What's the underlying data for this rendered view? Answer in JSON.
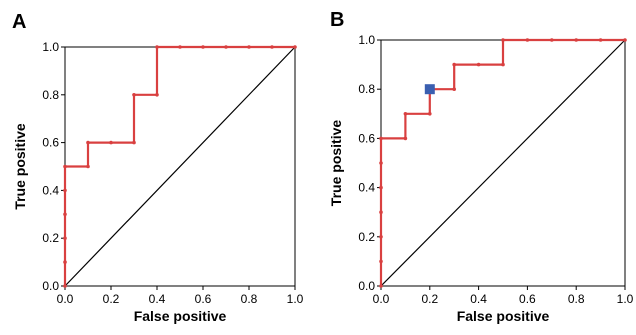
{
  "chart_data": [
    {
      "type": "line",
      "panel_label": "A",
      "xlabel": "False positive",
      "ylabel": "True positive",
      "xlim": [
        0,
        1
      ],
      "ylim": [
        0,
        1
      ],
      "x_ticks": [
        "0.0",
        "0.2",
        "0.4",
        "0.6",
        "0.8",
        "1.0"
      ],
      "y_ticks": [
        "0.0",
        "0.2",
        "0.4",
        "0.6",
        "0.8",
        "1.0"
      ],
      "grid": false,
      "series": [
        {
          "color": "#d94040",
          "x": [
            0,
            0,
            0,
            0,
            0,
            0,
            0.1,
            0.1,
            0.2,
            0.3,
            0.3,
            0.4,
            0.4,
            0.5,
            0.6,
            0.7,
            0.8,
            0.9,
            1.0
          ],
          "y": [
            0,
            0.1,
            0.2,
            0.3,
            0.4,
            0.5,
            0.5,
            0.6,
            0.6,
            0.6,
            0.8,
            0.8,
            1.0,
            1.0,
            1.0,
            1.0,
            1.0,
            1.0,
            1.0
          ]
        }
      ],
      "reference_line": {
        "x": [
          0,
          1
        ],
        "y": [
          0,
          1
        ],
        "color": "#000000"
      }
    },
    {
      "type": "line",
      "panel_label": "B",
      "xlabel": "False positive",
      "ylabel": "True positive",
      "xlim": [
        0,
        1
      ],
      "ylim": [
        0,
        1
      ],
      "x_ticks": [
        "0.0",
        "0.2",
        "0.4",
        "0.6",
        "0.8",
        "1.0"
      ],
      "y_ticks": [
        "0.0",
        "0.2",
        "0.4",
        "0.6",
        "0.8",
        "1.0"
      ],
      "grid": false,
      "series": [
        {
          "color": "#d94040",
          "x": [
            0,
            0,
            0,
            0,
            0,
            0,
            0,
            0.1,
            0.1,
            0.2,
            0.2,
            0.3,
            0.3,
            0.4,
            0.5,
            0.5,
            0.6,
            0.7,
            0.8,
            0.9,
            1.0
          ],
          "y": [
            0,
            0.1,
            0.2,
            0.3,
            0.4,
            0.5,
            0.6,
            0.6,
            0.7,
            0.7,
            0.8,
            0.8,
            0.9,
            0.9,
            0.9,
            1.0,
            1.0,
            1.0,
            1.0,
            1.0,
            1.0
          ]
        }
      ],
      "highlight_point": {
        "x": 0.2,
        "y": 0.8,
        "color": "#3a5fb0"
      },
      "reference_line": {
        "x": [
          0,
          1
        ],
        "y": [
          0,
          1
        ],
        "color": "#000000"
      }
    }
  ]
}
